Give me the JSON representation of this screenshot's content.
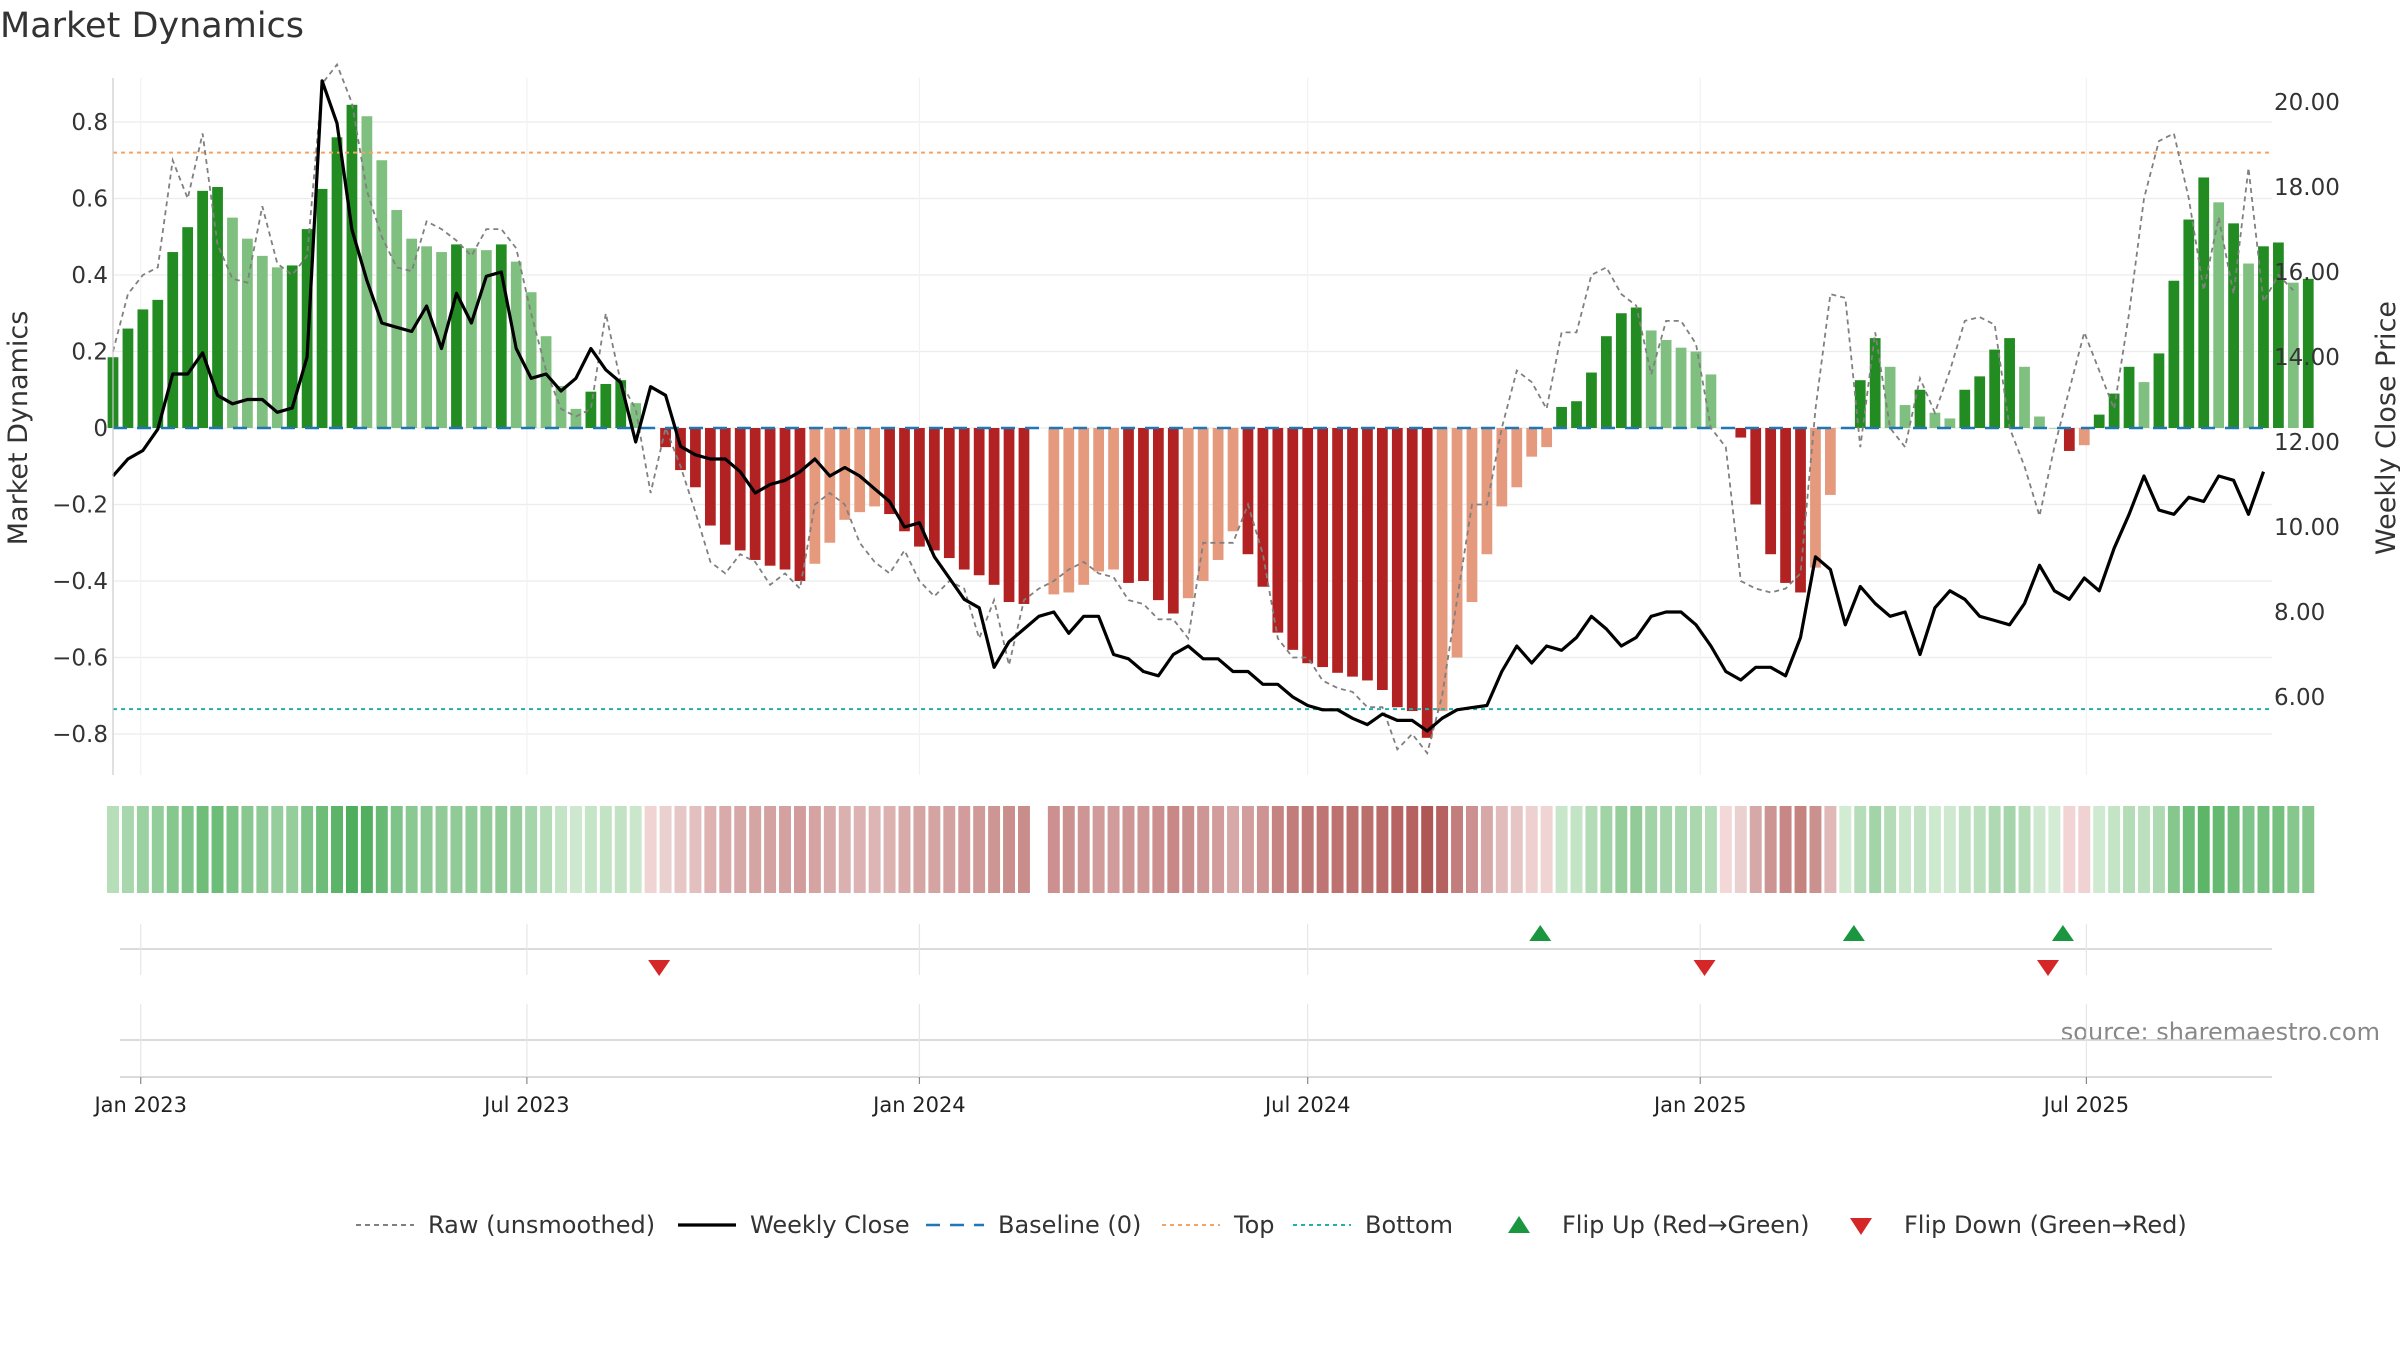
{
  "chart_data": {
    "type": "bar",
    "title": "Market Dynamics",
    "ylabel_left": "Market Dynamics",
    "ylabel_right": "Weekly Close Price",
    "source": "source: sharemaestro.com",
    "x_start": "2022-12-19",
    "x_range": [
      "2022-12-19",
      "2025-09-26"
    ],
    "x_ticks": [
      {
        "date": "2023-01-01",
        "label": "Jan 2023"
      },
      {
        "date": "2023-07-01",
        "label": "Jul 2023"
      },
      {
        "date": "2024-01-01",
        "label": "Jan 2024"
      },
      {
        "date": "2024-07-01",
        "label": "Jul 2024"
      },
      {
        "date": "2025-01-01",
        "label": "Jan 2025"
      },
      {
        "date": "2025-07-01",
        "label": "Jul 2025"
      }
    ],
    "ylim_left": [
      -0.9,
      0.93
    ],
    "y_ticks_left": [
      {
        "value": 0.8,
        "label": "0.8"
      },
      {
        "value": 0.6,
        "label": "0.6"
      },
      {
        "value": 0.4,
        "label": "0.4"
      },
      {
        "value": 0.2,
        "label": "0.2"
      },
      {
        "value": 0,
        "label": "0"
      },
      {
        "value": -0.2,
        "label": "−0.2"
      },
      {
        "value": -0.4,
        "label": "−0.4"
      },
      {
        "value": -0.6,
        "label": "−0.6"
      },
      {
        "value": -0.8,
        "label": "−0.8"
      }
    ],
    "ylim_right": [
      4.5,
      21.0
    ],
    "y_ticks_right": [
      {
        "value": 20,
        "label": "20.00"
      },
      {
        "value": 18,
        "label": "18.00"
      },
      {
        "value": 16,
        "label": "16.00"
      },
      {
        "value": 14,
        "label": "14.00"
      },
      {
        "value": 12,
        "label": "12.00"
      },
      {
        "value": 10,
        "label": "10.00"
      },
      {
        "value": 8,
        "label": "8.00"
      },
      {
        "value": 6,
        "label": "6.00"
      }
    ],
    "top_level": 0.72,
    "bottom_level": -0.735,
    "baseline": 0,
    "colors": {
      "strong_up": "#228B22",
      "weak_up": "#7fbf7f",
      "strong_down": "#b22222",
      "weak_down": "#e59a7e",
      "raw": "#808080",
      "close": "#000000",
      "baseline": "#1f77b4",
      "top": "#f4a460",
      "bottom": "#20b2aa",
      "flip_up": "#1a9641",
      "flip_down": "#d62728"
    },
    "series": [
      {
        "name": "Market Dynamics (bars)",
        "values": [
          0.185,
          0.26,
          0.31,
          0.335,
          0.46,
          0.525,
          0.62,
          0.63,
          0.55,
          0.495,
          0.45,
          0.42,
          0.425,
          0.52,
          0.625,
          0.76,
          0.845,
          0.815,
          0.7,
          0.57,
          0.495,
          0.475,
          0.46,
          0.48,
          0.47,
          0.465,
          0.48,
          0.435,
          0.355,
          0.24,
          0.11,
          0.05,
          0.095,
          0.115,
          0.125,
          0.065,
          0.0,
          -0.05,
          -0.11,
          -0.155,
          -0.255,
          -0.305,
          -0.32,
          -0.345,
          -0.36,
          -0.37,
          -0.4,
          -0.355,
          -0.3,
          -0.24,
          -0.22,
          -0.205,
          -0.225,
          -0.27,
          -0.31,
          -0.32,
          -0.34,
          -0.37,
          -0.385,
          -0.41,
          -0.455,
          -0.46,
          null,
          -0.435,
          -0.43,
          -0.41,
          -0.375,
          -0.37,
          -0.405,
          -0.4,
          -0.45,
          -0.485,
          -0.445,
          -0.4,
          -0.345,
          -0.27,
          -0.33,
          -0.415,
          -0.535,
          -0.58,
          -0.615,
          -0.625,
          -0.64,
          -0.65,
          -0.66,
          -0.685,
          -0.73,
          -0.74,
          -0.81,
          -0.74,
          -0.6,
          -0.455,
          -0.33,
          -0.205,
          -0.155,
          -0.075,
          -0.05,
          0.055,
          0.07,
          0.145,
          0.24,
          0.3,
          0.315,
          0.255,
          0.23,
          0.21,
          0.2,
          0.14,
          0.0,
          -0.025,
          -0.2,
          -0.33,
          -0.405,
          -0.43,
          -0.365,
          -0.175,
          0.0,
          0.125,
          0.235,
          0.16,
          0.06,
          0.1,
          0.04,
          0.025,
          0.1,
          0.135,
          0.205,
          0.235,
          0.16,
          0.03,
          0.0,
          -0.06,
          -0.045,
          0.035,
          0.09,
          0.16,
          0.12,
          0.195,
          0.385,
          0.545,
          0.655,
          0.59,
          0.535,
          0.43,
          0.475,
          0.485,
          0.38,
          0.39
        ],
        "shade": [
          "s",
          "s",
          "s",
          "s",
          "s",
          "s",
          "s",
          "s",
          "w",
          "w",
          "w",
          "w",
          "s",
          "s",
          "s",
          "s",
          "s",
          "w",
          "w",
          "w",
          "w",
          "w",
          "w",
          "s",
          "w",
          "w",
          "s",
          "w",
          "w",
          "w",
          "w",
          "w",
          "s",
          "s",
          "s",
          "w",
          "w",
          "s",
          "s",
          "s",
          "s",
          "s",
          "s",
          "s",
          "s",
          "s",
          "s",
          "w",
          "w",
          "w",
          "w",
          "w",
          "s",
          "s",
          "s",
          "s",
          "s",
          "s",
          "s",
          "s",
          "s",
          "s",
          null,
          "w",
          "w",
          "w",
          "w",
          "w",
          "s",
          "s",
          "s",
          "s",
          "w",
          "w",
          "w",
          "w",
          "s",
          "s",
          "s",
          "s",
          "s",
          "s",
          "s",
          "s",
          "s",
          "s",
          "s",
          "s",
          "s",
          "w",
          "w",
          "w",
          "w",
          "w",
          "w",
          "w",
          "w",
          "s",
          "s",
          "s",
          "s",
          "s",
          "s",
          "w",
          "w",
          "w",
          "w",
          "w",
          "w",
          "s",
          "s",
          "s",
          "s",
          "s",
          "w",
          "w",
          "w",
          "s",
          "s",
          "w",
          "w",
          "s",
          "w",
          "w",
          "s",
          "s",
          "s",
          "s",
          "w",
          "w",
          "w",
          "s",
          "w",
          "s",
          "s",
          "s",
          "w",
          "s",
          "s",
          "s",
          "s",
          "w",
          "s",
          "w",
          "s",
          "s",
          "w",
          "s"
        ]
      },
      {
        "name": "Raw (unsmoothed)",
        "values": [
          0.2,
          0.35,
          0.4,
          0.42,
          0.7,
          0.6,
          0.77,
          0.48,
          0.39,
          0.38,
          0.58,
          0.43,
          0.4,
          0.45,
          0.9,
          0.95,
          0.85,
          0.62,
          0.5,
          0.42,
          0.41,
          0.54,
          0.52,
          0.49,
          0.45,
          0.52,
          0.52,
          0.47,
          0.3,
          0.15,
          0.05,
          0.03,
          0.05,
          0.3,
          0.12,
          0.05,
          -0.17,
          0.0,
          -0.1,
          -0.22,
          -0.35,
          -0.38,
          -0.33,
          -0.35,
          -0.41,
          -0.38,
          -0.42,
          -0.2,
          -0.17,
          -0.2,
          -0.3,
          -0.35,
          -0.38,
          -0.32,
          -0.4,
          -0.44,
          -0.4,
          -0.42,
          -0.55,
          -0.45,
          -0.62,
          -0.45,
          -0.42,
          -0.4,
          -0.37,
          -0.35,
          -0.38,
          -0.39,
          -0.45,
          -0.46,
          -0.5,
          -0.5,
          -0.55,
          -0.3,
          -0.3,
          -0.3,
          -0.2,
          -0.33,
          -0.55,
          -0.6,
          -0.6,
          -0.66,
          -0.68,
          -0.69,
          -0.73,
          -0.73,
          -0.84,
          -0.8,
          -0.85,
          -0.7,
          -0.45,
          -0.2,
          -0.2,
          0.0,
          0.15,
          0.12,
          0.05,
          0.25,
          0.25,
          0.4,
          0.42,
          0.35,
          0.32,
          0.14,
          0.28,
          0.28,
          0.22,
          0.0,
          -0.05,
          -0.4,
          -0.42,
          -0.43,
          -0.42,
          -0.38,
          0.05,
          0.35,
          0.34,
          -0.05,
          0.25,
          0.0,
          -0.05,
          0.13,
          0.04,
          0.15,
          0.28,
          0.29,
          0.27,
          0.0,
          -0.1,
          -0.23,
          -0.05,
          0.1,
          0.25,
          0.15,
          0.05,
          0.3,
          0.6,
          0.75,
          0.77,
          0.6,
          0.36,
          0.55,
          0.35,
          0.68,
          0.33,
          0.4,
          0.36
        ]
      },
      {
        "name": "Weekly Close",
        "values": [
          11.2,
          11.6,
          11.8,
          12.3,
          13.6,
          13.6,
          14.1,
          13.1,
          12.9,
          13.0,
          13.0,
          12.7,
          12.8,
          14.0,
          20.5,
          19.5,
          17.0,
          15.8,
          14.8,
          14.7,
          14.6,
          15.2,
          14.2,
          15.5,
          14.8,
          15.9,
          16.0,
          14.2,
          13.5,
          13.6,
          13.2,
          13.5,
          14.2,
          13.7,
          13.4,
          12.0,
          13.3,
          13.1,
          11.9,
          11.7,
          11.6,
          11.6,
          11.3,
          10.8,
          11.0,
          11.1,
          11.3,
          11.6,
          11.2,
          11.4,
          11.2,
          10.9,
          10.6,
          10.0,
          10.1,
          9.3,
          8.8,
          8.3,
          8.1,
          6.7,
          7.3,
          7.6,
          7.9,
          8.0,
          7.5,
          7.9,
          7.9,
          7.0,
          6.9,
          6.6,
          6.5,
          7.0,
          7.2,
          6.9,
          6.9,
          6.6,
          6.6,
          6.3,
          6.3,
          6.0,
          5.8,
          5.7,
          5.7,
          5.5,
          5.35,
          5.6,
          5.45,
          5.45,
          5.2,
          5.5,
          5.7,
          5.75,
          5.8,
          6.6,
          7.2,
          6.8,
          7.2,
          7.1,
          7.4,
          7.9,
          7.6,
          7.2,
          7.4,
          7.9,
          8.0,
          8.0,
          7.7,
          7.2,
          6.6,
          6.4,
          6.7,
          6.7,
          6.5,
          7.4,
          9.3,
          9.0,
          7.7,
          8.6,
          8.2,
          7.9,
          8.0,
          7.0,
          8.1,
          8.5,
          8.3,
          7.9,
          7.8,
          7.7,
          8.2,
          9.1,
          8.5,
          8.3,
          8.8,
          8.5,
          9.5,
          10.3,
          11.2,
          10.4,
          10.3,
          10.7,
          10.6,
          11.2,
          11.1,
          10.3,
          11.3
        ]
      }
    ],
    "band_colors": [
      "#b6deb9",
      "#a8d7ad",
      "#9bd1a1",
      "#93cd9a",
      "#85c78d",
      "#7ec488",
      "#6fbd79",
      "#6cbd78",
      "#7bc285",
      "#88c890",
      "#8fca96",
      "#96cd9c",
      "#95cd9b",
      "#7ec387",
      "#6dbc78",
      "#5bb467",
      "#4fae5d",
      "#53af60",
      "#68b973",
      "#7ec387",
      "#8bc993",
      "#8fca96",
      "#92cb98",
      "#90ca96",
      "#91cb97",
      "#92cb98",
      "#90ca96",
      "#97cd9d",
      "#a5d5aa",
      "#b4dcb7",
      "#c4e4c6",
      "#cde8ce",
      "#c5e5c7",
      "#c2e3c4",
      "#c1e2c3",
      "#cae7cc",
      "#f0d3d3",
      "#ead0cf",
      "#e6c7c6",
      "#e3c0bf",
      "#ddb2b1",
      "#d8abaa",
      "#d6a8a7",
      "#d5a5a4",
      "#d4a2a1",
      "#d3a1a0",
      "#d19c9b",
      "#d4a3a2",
      "#d8abaa",
      "#dbb1b0",
      "#dcb3b2",
      "#ddb5b4",
      "#dcb2b1",
      "#d8abaa",
      "#d5a5a4",
      "#d4a4a3",
      "#d3a1a0",
      "#d19c9b",
      "#d09a99",
      "#cd9594",
      "#ca8e8d",
      "#c98d8c",
      null,
      "#cb908f",
      "#cb918f",
      "#cd9594",
      "#d09b9a",
      "#d09b9a",
      "#cd9695",
      "#ce9796",
      "#ca8f8e",
      "#c78886",
      "#ca8e8d",
      "#cd9695",
      "#d19c9b",
      "#d6a8a7",
      "#d19e9d",
      "#cc9392",
      "#c58381",
      "#c27d7b",
      "#bf7775",
      "#be7573",
      "#bd7270",
      "#bc716f",
      "#bb6f6d",
      "#b96b69",
      "#b66361",
      "#b56260",
      "#af5755",
      "#b56260",
      "#c27e7c",
      "#cb908f",
      "#d6a8a7",
      "#e1bcbb",
      "#e6c6c5",
      "#edd0cf",
      "#efd4d3",
      "#c8e6ca",
      "#c4e4c6",
      "#b3dbb6",
      "#a2d3a7",
      "#95cd9b",
      "#92cb98",
      "#a2d3a6",
      "#a6d5ab",
      "#a8d6ad",
      "#aad7ae",
      "#b6ddb9",
      "#f3d8d7",
      "#ead0cf",
      "#d6a8a7",
      "#cc9493",
      "#c78786",
      "#c5837f",
      "#cb918f",
      "#dfb8b7",
      "#d2ebd3",
      "#b6ddb9",
      "#a3d4a8",
      "#b4dcb7",
      "#c8e6ca",
      "#c1e2c3",
      "#cde9ce",
      "#cfe9d0",
      "#c1e2c3",
      "#bbe0bd",
      "#afd9b2",
      "#a6d5ab",
      "#b4dcb7",
      "#cfe9d0",
      "#d4ecd5",
      "#f1d4d3",
      "#efd2d1",
      "#d0e9d1",
      "#c4e4c6",
      "#b4dcb7",
      "#bce0be",
      "#aed9b2",
      "#86c78e",
      "#6bbc76",
      "#5db568",
      "#66b971",
      "#6fbd79",
      "#7fc488",
      "#76c17f",
      "#75c07f",
      "#86c78e",
      "#84c68c"
    ],
    "flip_up": [
      "2024-10-18",
      "2025-03-14",
      "2025-06-20"
    ],
    "flip_down": [
      "2023-09-01",
      "2025-01-03",
      "2025-06-13"
    ],
    "legend": [
      {
        "label": "Raw (unsmoothed)",
        "kind": "dashed",
        "color": "#808080"
      },
      {
        "label": "Weekly Close",
        "kind": "solid",
        "color": "#000000"
      },
      {
        "label": "Baseline (0)",
        "kind": "longdash",
        "color": "#1f77b4"
      },
      {
        "label": "Top",
        "kind": "dotted",
        "color": "#f4a460"
      },
      {
        "label": "Bottom",
        "kind": "dotted",
        "color": "#20b2aa"
      },
      {
        "label": "Flip Up (Red→Green)",
        "kind": "tri-up",
        "color": "#1a9641"
      },
      {
        "label": "Flip Down (Green→Red)",
        "kind": "tri-down",
        "color": "#d62728"
      }
    ]
  }
}
